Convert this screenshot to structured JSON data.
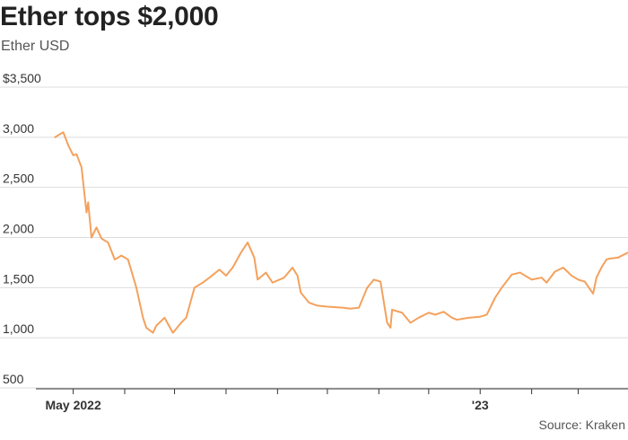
{
  "header": {
    "title": "Ether tops $2,000",
    "subtitle": "Ether USD",
    "source": "Source: Kraken"
  },
  "chart_data": {
    "type": "line",
    "title": "Ether tops $2,000",
    "subtitle": "Ether USD",
    "ylabel": "",
    "xlabel": "",
    "ylim": [
      500,
      3500
    ],
    "xlim": [
      "2022-04-15",
      "2023-03-31"
    ],
    "y_ticks": [
      {
        "value": 3500,
        "label": "$3,500"
      },
      {
        "value": 3000,
        "label": "3,000"
      },
      {
        "value": 2500,
        "label": "2,500"
      },
      {
        "value": 2000,
        "label": "2,000"
      },
      {
        "value": 1500,
        "label": "1,500"
      },
      {
        "value": 1000,
        "label": "1,000"
      },
      {
        "value": 500,
        "label": "500"
      }
    ],
    "x_ticks": [
      "2022-05-01",
      "2022-06-01",
      "2022-07-01",
      "2022-08-01",
      "2022-09-01",
      "2022-10-01",
      "2022-11-01",
      "2022-12-01",
      "2023-01-01",
      "2023-02-01",
      "2023-03-01"
    ],
    "x_tick_labels": [
      {
        "date": "2022-05-01",
        "label": "May 2022"
      },
      {
        "date": "2023-01-01",
        "label": "'23"
      }
    ],
    "grid": true,
    "line_color": "#f4a15d",
    "series": [
      {
        "x": [
          "2022-04-20",
          "2022-04-25",
          "2022-04-28",
          "2022-05-01",
          "2022-05-03",
          "2022-05-06",
          "2022-05-09",
          "2022-05-10",
          "2022-05-12",
          "2022-05-15",
          "2022-05-18",
          "2022-05-22",
          "2022-05-26",
          "2022-05-30",
          "2022-06-03",
          "2022-06-08",
          "2022-06-12",
          "2022-06-14",
          "2022-06-18",
          "2022-06-20",
          "2022-06-25",
          "2022-06-30",
          "2022-07-05",
          "2022-07-08",
          "2022-07-13",
          "2022-07-18",
          "2022-07-22",
          "2022-07-28",
          "2022-08-01",
          "2022-08-05",
          "2022-08-10",
          "2022-08-14",
          "2022-08-18",
          "2022-08-20",
          "2022-08-25",
          "2022-08-29",
          "2022-09-05",
          "2022-09-10",
          "2022-09-13",
          "2022-09-15",
          "2022-09-20",
          "2022-09-25",
          "2022-10-01",
          "2022-10-10",
          "2022-10-15",
          "2022-10-20",
          "2022-10-25",
          "2022-10-29",
          "2022-11-02",
          "2022-11-06",
          "2022-11-08",
          "2022-11-09",
          "2022-11-15",
          "2022-11-20",
          "2022-11-25",
          "2022-12-01",
          "2022-12-05",
          "2022-12-10",
          "2022-12-15",
          "2022-12-18",
          "2022-12-25",
          "2023-01-01",
          "2023-01-05",
          "2023-01-10",
          "2023-01-14",
          "2023-01-20",
          "2023-01-25",
          "2023-02-01",
          "2023-02-07",
          "2023-02-10",
          "2023-02-15",
          "2023-02-20",
          "2023-02-25",
          "2023-03-01",
          "2023-03-05",
          "2023-03-10",
          "2023-03-12",
          "2023-03-15",
          "2023-03-18",
          "2023-03-20",
          "2023-03-25",
          "2023-03-31"
        ],
        "y": [
          3000,
          3050,
          2920,
          2820,
          2830,
          2700,
          2250,
          2350,
          2000,
          2100,
          1990,
          1950,
          1780,
          1820,
          1780,
          1500,
          1200,
          1100,
          1050,
          1120,
          1200,
          1050,
          1150,
          1200,
          1500,
          1550,
          1600,
          1680,
          1620,
          1700,
          1850,
          1950,
          1800,
          1580,
          1650,
          1550,
          1600,
          1700,
          1620,
          1450,
          1350,
          1320,
          1310,
          1300,
          1290,
          1300,
          1500,
          1580,
          1560,
          1150,
          1100,
          1280,
          1250,
          1150,
          1200,
          1250,
          1230,
          1260,
          1200,
          1180,
          1200,
          1210,
          1230,
          1400,
          1500,
          1630,
          1650,
          1580,
          1600,
          1550,
          1660,
          1700,
          1620,
          1580,
          1560,
          1440,
          1600,
          1700,
          1780,
          1790,
          1800,
          1850
        ]
      }
    ]
  }
}
